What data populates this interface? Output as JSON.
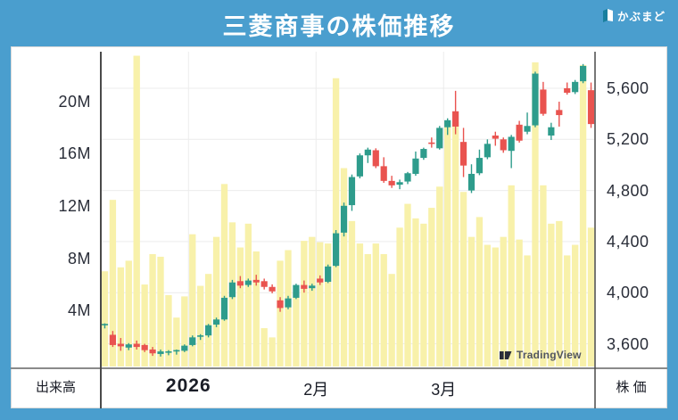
{
  "header": {
    "title": "三菱商事の株価推移",
    "brand_name": "かぶまど"
  },
  "watermark": {
    "text": "TradingView"
  },
  "axes": {
    "volume_axis_title": "出来高",
    "price_axis_title": "株 価",
    "volume_ticks": [
      {
        "label": "20M",
        "value": 20
      },
      {
        "label": "16M",
        "value": 16
      },
      {
        "label": "12M",
        "value": 12
      },
      {
        "label": "8M",
        "value": 8
      },
      {
        "label": "4M",
        "value": 4
      }
    ],
    "price_ticks": [
      {
        "label": "5,600",
        "value": 5600
      },
      {
        "label": "5,200",
        "value": 5200
      },
      {
        "label": "4,800",
        "value": 4800
      },
      {
        "label": "4,400",
        "value": 4400
      },
      {
        "label": "4,000",
        "value": 4000
      },
      {
        "label": "3,600",
        "value": 3600
      }
    ],
    "months": [
      {
        "label": "2026",
        "start_index": 11,
        "bold": true
      },
      {
        "label": "2月",
        "start_index": 27,
        "bold": false
      },
      {
        "label": "3月",
        "start_index": 43,
        "bold": false
      }
    ]
  },
  "colors": {
    "background": "#4A9ECE",
    "panel": "#FFFFFF",
    "up": "#2E9C8C",
    "down": "#E9534F",
    "volume_bar": "#F8F1AA",
    "grid": "#ECECEC",
    "axis_text": "#2A2E39",
    "frame_dark": "#4a4a4a",
    "frame_mid": "#8a8a8a",
    "brand_teal": "#1A7F9E"
  },
  "chart_data": {
    "type": "candlestick_with_volume",
    "title": "三菱商事の株価推移",
    "price_axis": {
      "ticks": [
        3600,
        4000,
        4400,
        4800,
        5200,
        5600
      ],
      "unit": "円"
    },
    "volume_axis": {
      "ticks_m": [
        4,
        8,
        12,
        16,
        20
      ],
      "unit": "株"
    },
    "x_labels": [
      "2026",
      "2月",
      "3月"
    ],
    "columns": [
      "open",
      "high",
      "low",
      "close",
      "volume_millions"
    ],
    "candles": [
      [
        3740,
        3760,
        3720,
        3750,
        7.2
      ],
      [
        3670,
        3700,
        3575,
        3590,
        12.6
      ],
      [
        3600,
        3645,
        3545,
        3580,
        7.5
      ],
      [
        3570,
        3605,
        3550,
        3595,
        8.0
      ],
      [
        3600,
        3625,
        3555,
        3575,
        23.5
      ],
      [
        3590,
        3600,
        3535,
        3550,
        6.2
      ],
      [
        3555,
        3575,
        3505,
        3525,
        8.5
      ],
      [
        3520,
        3555,
        3500,
        3540,
        8.3
      ],
      [
        3530,
        3550,
        3510,
        3535,
        5.4
      ],
      [
        3535,
        3555,
        3515,
        3545,
        3.7
      ],
      [
        3545,
        3595,
        3535,
        3585,
        5.3
      ],
      [
        3590,
        3665,
        3580,
        3650,
        10.0
      ],
      [
        3650,
        3675,
        3630,
        3660,
        6.1
      ],
      [
        3665,
        3755,
        3650,
        3745,
        7.0
      ],
      [
        3750,
        3805,
        3730,
        3790,
        9.8
      ],
      [
        3790,
        3975,
        3780,
        3960,
        13.8
      ],
      [
        3965,
        4100,
        3950,
        4080,
        10.9
      ],
      [
        4090,
        4130,
        4035,
        4055,
        9.0
      ],
      [
        4060,
        4110,
        4045,
        4095,
        10.8
      ],
      [
        4100,
        4140,
        4055,
        4080,
        8.7
      ],
      [
        4090,
        4110,
        4025,
        4045,
        2.9
      ],
      [
        4045,
        4065,
        3995,
        4010,
        2.2
      ],
      [
        3940,
        3965,
        3850,
        3880,
        8.0
      ],
      [
        3885,
        3975,
        3870,
        3955,
        8.8
      ],
      [
        3960,
        4070,
        3950,
        4060,
        5.6
      ],
      [
        4060,
        4095,
        4000,
        4030,
        9.5
      ],
      [
        4035,
        4070,
        4015,
        4055,
        9.8
      ],
      [
        4110,
        4135,
        4060,
        4080,
        9.4
      ],
      [
        4085,
        4220,
        4075,
        4205,
        9.3
      ],
      [
        4210,
        4490,
        4200,
        4465,
        21.8
      ],
      [
        4470,
        4705,
        4440,
        4680,
        15.0
      ],
      [
        4685,
        4925,
        4640,
        4905,
        11.0
      ],
      [
        4910,
        5090,
        4895,
        5075,
        9.3
      ],
      [
        5075,
        5135,
        5015,
        5120,
        8.5
      ],
      [
        5115,
        5130,
        4975,
        4990,
        9.3
      ],
      [
        4990,
        5060,
        4860,
        4875,
        8.5
      ],
      [
        4875,
        4915,
        4820,
        4840,
        7.0
      ],
      [
        4845,
        4885,
        4810,
        4865,
        10.5
      ],
      [
        4870,
        4945,
        4850,
        4935,
        12.3
      ],
      [
        4930,
        5105,
        4915,
        5050,
        11.2
      ],
      [
        5055,
        5135,
        5040,
        5125,
        10.8
      ],
      [
        5170,
        5215,
        5135,
        5160,
        12.0
      ],
      [
        5130,
        5305,
        5120,
        5290,
        13.6
      ],
      [
        5295,
        5365,
        5235,
        5350,
        18.5
      ],
      [
        5420,
        5580,
        5240,
        5300,
        18.5
      ],
      [
        5180,
        5290,
        4905,
        4995,
        13.2
      ],
      [
        4800,
        5005,
        4780,
        4930,
        9.8
      ],
      [
        4935,
        5120,
        4920,
        5055,
        11.3
      ],
      [
        5060,
        5200,
        5045,
        5165,
        9.2
      ],
      [
        5230,
        5260,
        5150,
        5205,
        9.0
      ],
      [
        5200,
        5215,
        5095,
        5115,
        9.8
      ],
      [
        5110,
        5235,
        4975,
        5220,
        13.7
      ],
      [
        5315,
        5345,
        5175,
        5190,
        9.6
      ],
      [
        5260,
        5410,
        5240,
        5305,
        8.4
      ],
      [
        5310,
        5730,
        5295,
        5715,
        23.0
      ],
      [
        5590,
        5650,
        5385,
        5400,
        13.7
      ],
      [
        5230,
        5330,
        5195,
        5295,
        10.8
      ],
      [
        5430,
        5495,
        5300,
        5390,
        11.0
      ],
      [
        5600,
        5645,
        5550,
        5565,
        8.4
      ],
      [
        5570,
        5665,
        5555,
        5650,
        9.2
      ],
      [
        5655,
        5790,
        5640,
        5775,
        22.8
      ],
      [
        5585,
        5645,
        5290,
        5320,
        10.5
      ]
    ]
  }
}
